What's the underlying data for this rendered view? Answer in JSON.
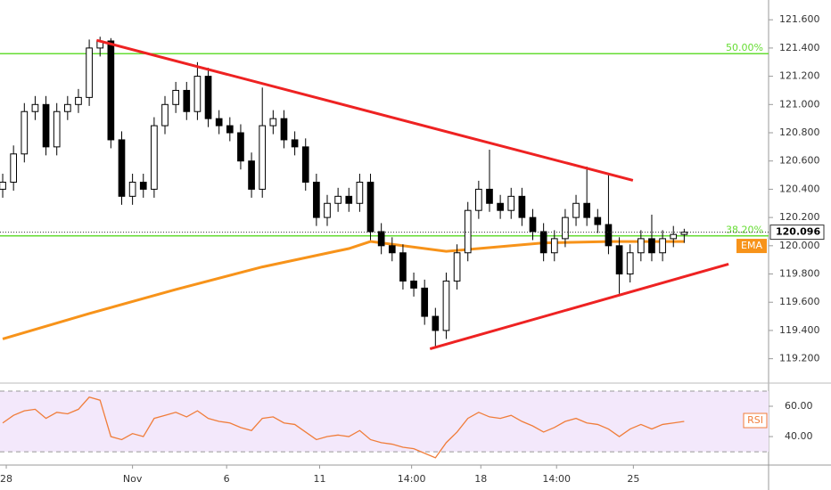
{
  "chart_data": {
    "type": "candlestick",
    "xlim": [
      -0.25,
      70.8
    ],
    "xticks": [
      {
        "value": 0.33,
        "label": "28"
      },
      {
        "value": 12,
        "label": "Nov"
      },
      {
        "value": 20.7,
        "label": "6"
      },
      {
        "value": 29.3,
        "label": "11"
      },
      {
        "value": 37.8,
        "label": "14:00"
      },
      {
        "value": 44.2,
        "label": "18"
      },
      {
        "value": 51.2,
        "label": "14:00"
      },
      {
        "value": 58.3,
        "label": "25"
      }
    ],
    "ylim": [
      119.04,
      121.74
    ],
    "yticks": [
      {
        "value": 119.2,
        "label": "119.200"
      },
      {
        "value": 119.4,
        "label": "119.400"
      },
      {
        "value": 119.6,
        "label": "119.600"
      },
      {
        "value": 119.8,
        "label": "119.800"
      },
      {
        "value": 120.0,
        "label": "120.000"
      },
      {
        "value": 120.2,
        "label": "120.200"
      },
      {
        "value": 120.4,
        "label": "120.400"
      },
      {
        "value": 120.6,
        "label": "120.600"
      },
      {
        "value": 120.8,
        "label": "120.800"
      },
      {
        "value": 121.0,
        "label": "121.000"
      },
      {
        "value": 121.2,
        "label": "121.200"
      },
      {
        "value": 121.4,
        "label": "121.400"
      },
      {
        "value": 121.6,
        "label": "121.600"
      }
    ],
    "open": [
      120.4,
      120.45,
      120.65,
      120.95,
      121.0,
      120.7,
      120.95,
      121.0,
      121.05,
      121.4,
      121.45,
      120.75,
      120.35,
      120.45,
      120.4,
      120.85,
      121.0,
      121.1,
      120.95,
      121.2,
      120.9,
      120.85,
      120.8,
      120.6,
      120.4,
      120.85,
      120.9,
      120.75,
      120.7,
      120.45,
      120.2,
      120.3,
      120.35,
      120.3,
      120.45,
      120.1,
      120.0,
      119.95,
      119.75,
      119.7,
      119.5,
      119.4,
      119.75,
      119.95,
      120.25,
      120.4,
      120.3,
      120.25,
      120.35,
      120.2,
      120.1,
      119.95,
      120.05,
      120.2,
      120.3,
      120.2,
      120.15,
      120.0,
      119.8,
      119.95,
      120.05,
      119.95,
      120.05,
      120.08
    ],
    "high": [
      120.51,
      120.71,
      121.01,
      121.06,
      121.06,
      121.01,
      121.06,
      121.11,
      121.46,
      121.48,
      121.47,
      120.81,
      120.51,
      120.51,
      120.91,
      121.06,
      121.16,
      121.16,
      121.3,
      121.26,
      120.96,
      120.91,
      120.86,
      120.66,
      121.12,
      120.96,
      120.96,
      120.81,
      120.76,
      120.51,
      120.36,
      120.41,
      120.41,
      120.51,
      120.51,
      120.16,
      120.06,
      120.01,
      119.81,
      119.76,
      119.56,
      119.81,
      120.01,
      120.31,
      120.46,
      120.68,
      120.36,
      120.41,
      120.41,
      120.26,
      120.16,
      120.11,
      120.26,
      120.36,
      120.56,
      120.26,
      120.5,
      120.06,
      120.01,
      120.11,
      120.22,
      120.11,
      120.14,
      120.12
    ],
    "low": [
      120.34,
      120.39,
      120.59,
      120.89,
      120.64,
      120.64,
      120.89,
      120.94,
      120.99,
      121.34,
      120.69,
      120.29,
      120.29,
      120.34,
      120.34,
      120.79,
      120.94,
      120.89,
      120.89,
      120.84,
      120.79,
      120.74,
      120.54,
      120.34,
      120.34,
      120.79,
      120.69,
      120.64,
      120.39,
      120.14,
      120.14,
      120.24,
      120.24,
      120.24,
      120.04,
      119.94,
      119.89,
      119.69,
      119.64,
      119.44,
      119.28,
      119.34,
      119.69,
      119.89,
      120.19,
      120.24,
      120.19,
      120.19,
      120.14,
      120.04,
      119.89,
      119.89,
      119.99,
      120.14,
      120.14,
      120.09,
      119.94,
      119.66,
      119.74,
      119.89,
      119.89,
      119.89,
      119.99,
      120.02
    ],
    "close": [
      120.45,
      120.65,
      120.95,
      121.0,
      120.7,
      120.95,
      121.0,
      121.05,
      121.4,
      121.45,
      120.75,
      120.35,
      120.45,
      120.4,
      120.85,
      121.0,
      121.1,
      120.95,
      121.2,
      120.9,
      120.85,
      120.8,
      120.6,
      120.4,
      120.85,
      120.9,
      120.75,
      120.7,
      120.45,
      120.2,
      120.3,
      120.35,
      120.3,
      120.45,
      120.1,
      120.0,
      119.95,
      119.75,
      119.7,
      119.5,
      119.4,
      119.75,
      119.95,
      120.25,
      120.4,
      120.3,
      120.25,
      120.35,
      120.2,
      120.1,
      119.95,
      120.05,
      120.2,
      120.3,
      120.2,
      120.15,
      120.0,
      119.8,
      119.95,
      120.05,
      119.95,
      120.05,
      120.08,
      120.096
    ],
    "last_price": {
      "value": 120.096,
      "label": "120.096"
    },
    "ema": {
      "name": "EMA",
      "color": "#f7931a",
      "x": [
        0,
        8,
        16,
        24,
        32,
        34,
        41,
        50,
        56,
        63
      ],
      "values": [
        119.34,
        119.52,
        119.69,
        119.85,
        119.98,
        120.03,
        119.96,
        120.02,
        120.03,
        120.03
      ]
    },
    "fib_levels": [
      {
        "name": "50.00%",
        "value": 121.36
      },
      {
        "name": "38.20%",
        "value": 120.07
      }
    ],
    "fib_color": "#66dd33",
    "trendlines": [
      {
        "color": "#ee2222",
        "x": [
          8.68,
          58.26
        ],
        "y": [
          121.455,
          120.463
        ]
      },
      {
        "color": "#ee2222",
        "x": [
          39.5,
          67.1
        ],
        "y": [
          119.27,
          119.87
        ]
      }
    ],
    "rsi": {
      "name": "RSI",
      "color": "#f07d3a",
      "ylim": [
        22.4,
        74.1
      ],
      "band": [
        30,
        70
      ],
      "yticks": [
        {
          "value": 40,
          "label": "40.00"
        },
        {
          "value": 60,
          "label": "60.00"
        }
      ],
      "values": [
        49,
        54,
        57,
        58,
        52,
        56,
        55,
        58,
        66,
        64,
        40,
        38,
        42,
        40,
        52,
        54,
        56,
        53,
        57,
        52,
        50,
        49,
        46,
        44,
        52,
        53,
        49,
        48,
        43,
        38,
        40,
        41,
        40,
        44,
        38,
        36,
        35,
        33,
        32,
        29,
        26,
        36,
        43,
        52,
        56,
        53,
        52,
        54,
        50,
        47,
        43,
        46,
        50,
        52,
        49,
        48,
        45,
        40,
        45,
        48,
        45,
        48,
        49,
        50
      ]
    }
  }
}
